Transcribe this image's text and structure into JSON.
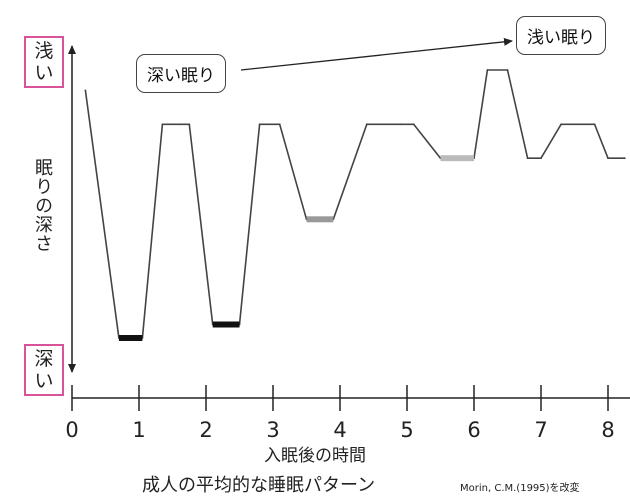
{
  "chart_data": {
    "type": "line",
    "title": "成人の平均的な睡眠パターン",
    "source": "Morin, C.M.(1995)を改変",
    "xlabel": "入眠後の時間",
    "ylabel": "眠りの深さ",
    "y_top_label": "浅い",
    "y_bottom_label": "深い",
    "x_ticks": [
      "0",
      "1",
      "2",
      "3",
      "4",
      "5",
      "6",
      "7",
      "8"
    ],
    "xlim": [
      0,
      8.25
    ],
    "ylim_depth": [
      0,
      4.2
    ],
    "depth_direction": "deeper downward",
    "series": [
      {
        "x": [
          0.2,
          0.7,
          1.05,
          1.35,
          1.6,
          1.75,
          2.1,
          2.5,
          2.8,
          3.1,
          3.5,
          3.9,
          4.4,
          4.9,
          5.1,
          5.5,
          6.0,
          6.2,
          6.5,
          6.8,
          7.0,
          7.3,
          7.8,
          8.0,
          8.25
        ],
        "depth": [
          0.3,
          3.95,
          3.95,
          0.8,
          0.8,
          0.8,
          3.75,
          3.75,
          0.8,
          0.8,
          2.2,
          2.2,
          0.8,
          0.8,
          0.8,
          1.3,
          1.3,
          0.0,
          0.0,
          1.3,
          1.3,
          0.8,
          0.8,
          1.3,
          1.3
        ]
      }
    ],
    "deep_stage_segments": [
      {
        "x": [
          0.7,
          1.05
        ],
        "depth": 3.95,
        "color": "#111111"
      },
      {
        "x": [
          2.1,
          2.5
        ],
        "depth": 3.75,
        "color": "#111111"
      },
      {
        "x": [
          3.5,
          3.9
        ],
        "depth": 2.2,
        "color": "#999999"
      },
      {
        "x": [
          5.5,
          6.0
        ],
        "depth": 1.3,
        "color": "#bbbbbb"
      }
    ],
    "annotation": {
      "from_label": "深い眠り",
      "to_label": "浅い眠り"
    },
    "colors": {
      "line": "#444444",
      "label_border": "#d9539a"
    }
  }
}
